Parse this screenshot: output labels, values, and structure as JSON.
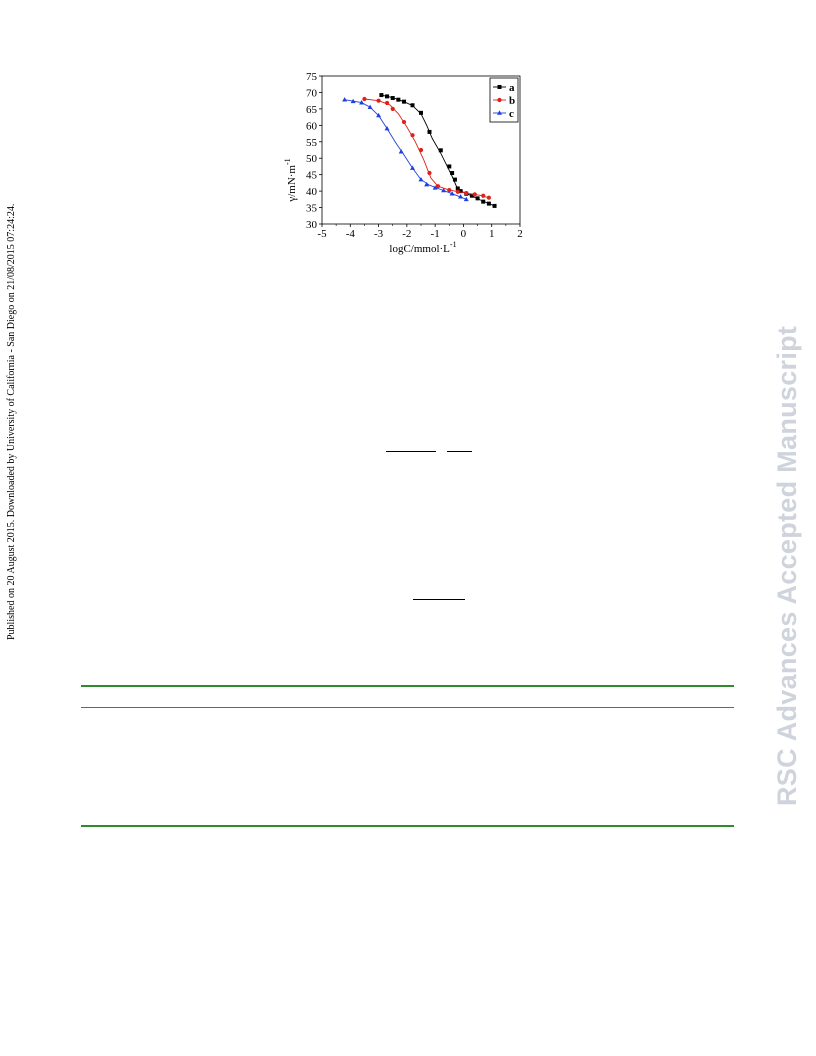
{
  "side_note": "Published on 20 August 2015. Downloaded by University of California - San Diego on 21/08/2015 07:24:24.",
  "watermark": "RSC Advances Accepted Manuscript",
  "chart_data": {
    "type": "scatter",
    "xlabel": "logC/mmol·L",
    "xlabel_sup": "-1",
    "ylabel": "γ/mN·m",
    "ylabel_sup": "-1",
    "xlim": [
      -5,
      2
    ],
    "ylim": [
      30,
      75
    ],
    "x_ticks": [
      "-5",
      "-4",
      "-3",
      "-2",
      "-1",
      "0",
      "1",
      "2"
    ],
    "y_ticks": [
      "30",
      "35",
      "40",
      "45",
      "50",
      "55",
      "60",
      "65",
      "70",
      "75"
    ],
    "legend_position": "top-right",
    "series": [
      {
        "name": "a",
        "color": "#000000",
        "marker": "square",
        "points": [
          [
            -2.9,
            69.2
          ],
          [
            -2.7,
            68.8
          ],
          [
            -2.5,
            68.3
          ],
          [
            -2.3,
            67.8
          ],
          [
            -2.1,
            67.2
          ],
          [
            -1.8,
            66.1
          ],
          [
            -1.5,
            63.8
          ],
          [
            -1.2,
            58.0
          ],
          [
            -0.8,
            52.4
          ],
          [
            -0.5,
            47.5
          ],
          [
            -0.4,
            45.5
          ],
          [
            -0.3,
            43.5
          ],
          [
            -0.2,
            40.8
          ],
          [
            -0.1,
            40.0
          ],
          [
            0.1,
            39.2
          ],
          [
            0.3,
            38.6
          ],
          [
            0.5,
            37.8
          ],
          [
            0.7,
            36.8
          ],
          [
            0.9,
            36.2
          ],
          [
            1.1,
            35.5
          ]
        ],
        "curve": [
          [
            -2.9,
            69.2
          ],
          [
            -2.5,
            68.4
          ],
          [
            -2.1,
            67.2
          ],
          [
            -1.8,
            66.0
          ],
          [
            -1.5,
            63.5
          ],
          [
            -1.3,
            60.0
          ],
          [
            -1.1,
            56.0
          ],
          [
            -0.8,
            51.5
          ],
          [
            -0.6,
            48.0
          ],
          [
            -0.4,
            44.5
          ],
          [
            -0.25,
            41.5
          ],
          [
            -0.1,
            40.0
          ],
          [
            0.2,
            38.9
          ],
          [
            0.6,
            37.3
          ],
          [
            1.1,
            35.5
          ]
        ]
      },
      {
        "name": "b",
        "color": "#e0201a",
        "marker": "circle",
        "points": [
          [
            -3.5,
            68.0
          ],
          [
            -3.0,
            67.5
          ],
          [
            -2.7,
            66.8
          ],
          [
            -2.5,
            65.0
          ],
          [
            -2.1,
            61.0
          ],
          [
            -1.8,
            57.0
          ],
          [
            -1.5,
            52.5
          ],
          [
            -1.2,
            45.5
          ],
          [
            -0.9,
            41.5
          ],
          [
            -0.5,
            40.3
          ],
          [
            -0.2,
            39.8
          ],
          [
            0.1,
            39.4
          ],
          [
            0.4,
            39.0
          ],
          [
            0.7,
            38.6
          ],
          [
            0.9,
            38.0
          ]
        ],
        "curve": [
          [
            -3.5,
            68.0
          ],
          [
            -3.0,
            67.5
          ],
          [
            -2.6,
            66.2
          ],
          [
            -2.3,
            63.5
          ],
          [
            -2.0,
            59.5
          ],
          [
            -1.7,
            55.0
          ],
          [
            -1.4,
            49.5
          ],
          [
            -1.15,
            44.0
          ],
          [
            -0.9,
            41.5
          ],
          [
            -0.5,
            40.3
          ],
          [
            0.1,
            39.4
          ],
          [
            0.6,
            38.7
          ],
          [
            0.9,
            38.0
          ]
        ]
      },
      {
        "name": "c",
        "color": "#1f3fe0",
        "marker": "triangle",
        "points": [
          [
            -4.2,
            67.8
          ],
          [
            -3.9,
            67.3
          ],
          [
            -3.6,
            66.9
          ],
          [
            -3.3,
            65.5
          ],
          [
            -3.0,
            63.0
          ],
          [
            -2.7,
            59.0
          ],
          [
            -2.2,
            52.0
          ],
          [
            -1.8,
            47.0
          ],
          [
            -1.5,
            43.5
          ],
          [
            -1.3,
            42.0
          ],
          [
            -1.0,
            41.0
          ],
          [
            -0.7,
            40.2
          ],
          [
            -0.4,
            39.2
          ],
          [
            -0.1,
            38.3
          ],
          [
            0.1,
            37.5
          ]
        ],
        "curve": [
          [
            -4.2,
            67.8
          ],
          [
            -3.6,
            66.9
          ],
          [
            -3.3,
            65.5
          ],
          [
            -3.0,
            63.0
          ],
          [
            -2.7,
            59.0
          ],
          [
            -2.4,
            54.8
          ],
          [
            -2.1,
            51.0
          ],
          [
            -1.8,
            47.0
          ],
          [
            -1.5,
            43.5
          ],
          [
            -1.2,
            41.8
          ],
          [
            -0.8,
            40.5
          ],
          [
            -0.4,
            39.2
          ],
          [
            0.1,
            37.5
          ]
        ]
      }
    ]
  }
}
